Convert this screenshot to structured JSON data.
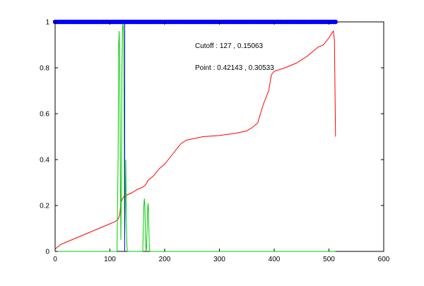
{
  "chart_data": {
    "type": "line",
    "title": "",
    "xlabel": "",
    "ylabel": "",
    "xlim": [
      0,
      600
    ],
    "ylim": [
      0,
      1
    ],
    "x_ticks": [
      0,
      100,
      200,
      300,
      400,
      500,
      600
    ],
    "y_ticks": [
      0,
      0.2,
      0.4,
      0.6,
      0.8,
      1
    ],
    "grid": false,
    "annotations": [
      {
        "text": "Cutoff : 127 , 0.15063"
      },
      {
        "text": "Point : 0.42143 , 0.30533"
      }
    ],
    "series": [
      {
        "color": "#ff0000",
        "x": [
          0,
          10,
          20,
          40,
          60,
          80,
          100,
          110,
          115,
          118,
          120,
          123,
          126,
          130,
          140,
          150,
          160,
          165,
          170,
          180,
          190,
          200,
          210,
          220,
          230,
          240,
          250,
          270,
          300,
          330,
          350,
          360,
          370,
          375,
          380,
          390,
          395,
          400,
          420,
          440,
          460,
          470,
          480,
          490,
          500,
          505,
          508,
          510,
          512
        ],
        "y": [
          0.01,
          0.03,
          0.04,
          0.06,
          0.08,
          0.1,
          0.12,
          0.13,
          0.14,
          0.16,
          0.21,
          0.23,
          0.24,
          0.245,
          0.255,
          0.27,
          0.28,
          0.29,
          0.31,
          0.33,
          0.36,
          0.38,
          0.41,
          0.44,
          0.47,
          0.485,
          0.49,
          0.5,
          0.505,
          0.515,
          0.525,
          0.54,
          0.56,
          0.6,
          0.64,
          0.7,
          0.77,
          0.785,
          0.8,
          0.82,
          0.85,
          0.87,
          0.89,
          0.9,
          0.93,
          0.95,
          0.96,
          0.92,
          0.5
        ]
      },
      {
        "color": "#00cc00",
        "x": [
          0,
          110,
          113,
          115,
          116,
          117,
          118,
          119,
          120,
          121,
          122,
          123,
          124,
          125,
          126,
          127,
          128,
          129,
          130,
          131,
          132,
          133,
          135,
          158,
          160,
          161,
          162,
          163,
          164,
          165,
          166,
          167,
          168,
          169,
          170,
          171,
          172,
          173,
          175,
          512
        ],
        "y": [
          0,
          0,
          0,
          0.4,
          0.9,
          0.96,
          0.8,
          0.4,
          0.05,
          0.3,
          0.8,
          0.97,
          1.0,
          0.95,
          0.55,
          0.05,
          0.2,
          0.4,
          0.15,
          0.03,
          0,
          0,
          0,
          0,
          0,
          0.1,
          0.2,
          0.23,
          0.19,
          0.06,
          0,
          0.02,
          0.1,
          0.19,
          0.21,
          0.12,
          0.02,
          0,
          0,
          0
        ]
      },
      {
        "color": "#0000ff",
        "x": [
          127,
          127
        ],
        "y": [
          0,
          1
        ]
      }
    ],
    "markers": {
      "color": "#0000ff",
      "y": 1,
      "x_start": 0,
      "x_end": 512,
      "step": 4
    }
  }
}
